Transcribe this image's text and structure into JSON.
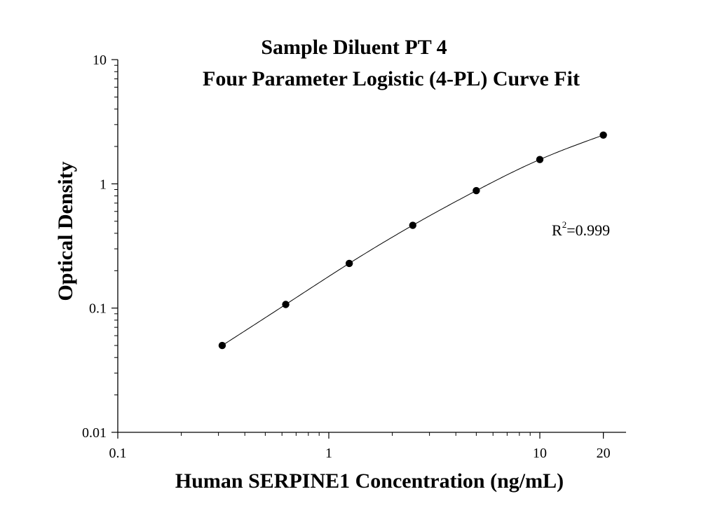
{
  "chart_data": {
    "type": "scatter",
    "title": "Sample Diluent PT 4",
    "subtitle": "Four Parameter Logistic (4-PL) Curve Fit",
    "xlabel": "Human SERPINE1 Concentration (ng/mL)",
    "ylabel": "Optical Density",
    "x_scale": "log",
    "y_scale": "log",
    "xlim": [
      0.1,
      25
    ],
    "ylim": [
      0.01,
      10
    ],
    "x_ticks": [
      {
        "value": 0.1,
        "label": "0.1"
      },
      {
        "value": 1,
        "label": "1"
      },
      {
        "value": 10,
        "label": "10"
      },
      {
        "value": 20,
        "label": "20"
      }
    ],
    "y_ticks": [
      {
        "value": 0.01,
        "label": "0.01"
      },
      {
        "value": 0.1,
        "label": "0.1"
      },
      {
        "value": 1,
        "label": "1"
      },
      {
        "value": 10,
        "label": "10"
      }
    ],
    "grid": false,
    "series": [
      {
        "x": [
          0.3125,
          0.625,
          1.25,
          2.5,
          5,
          10,
          20
        ],
        "y": [
          0.05,
          0.107,
          0.229,
          0.464,
          0.882,
          1.57,
          2.47
        ]
      }
    ],
    "annotation": {
      "base": "R",
      "sup": "2",
      "rest": "=0.999"
    }
  }
}
